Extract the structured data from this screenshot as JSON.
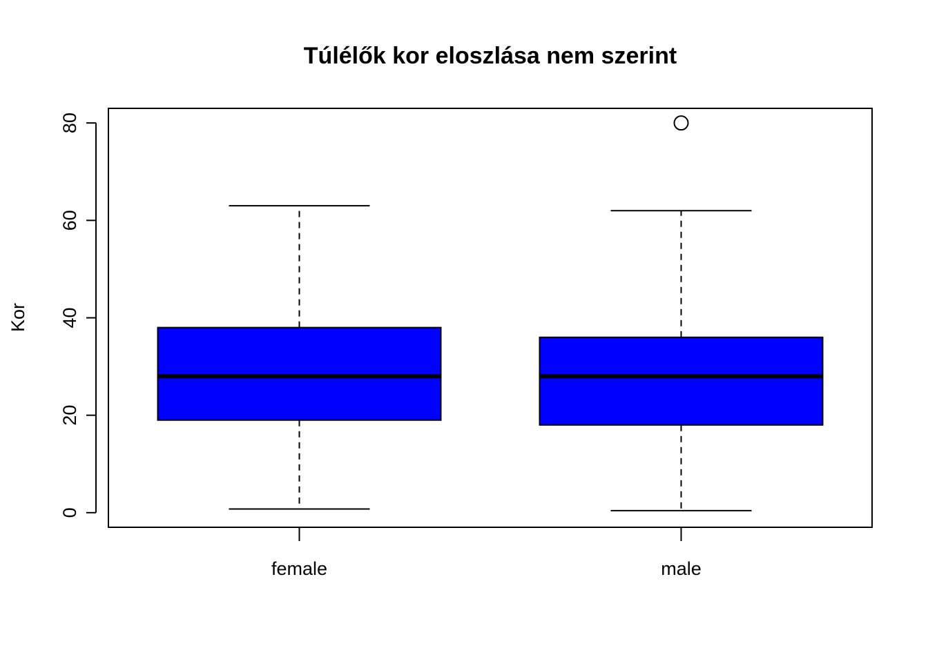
{
  "chart_data": {
    "type": "boxplot",
    "title": "Túlélők kor eloszlása nem szerint",
    "xlabel": "",
    "ylabel": "Kor",
    "categories": [
      "female",
      "male"
    ],
    "ylim": [
      -3,
      83
    ],
    "yticks": [
      0,
      20,
      40,
      60,
      80
    ],
    "grid": false,
    "legend": "none",
    "box_fill": "#0000ff",
    "boxes": [
      {
        "category": "female",
        "whisker_low": 0.75,
        "q1": 19,
        "median": 28,
        "q3": 38,
        "whisker_high": 63,
        "outliers": []
      },
      {
        "category": "male",
        "whisker_low": 0.42,
        "q1": 18,
        "median": 28,
        "q3": 36,
        "whisker_high": 62,
        "outliers": [
          80
        ]
      }
    ]
  }
}
